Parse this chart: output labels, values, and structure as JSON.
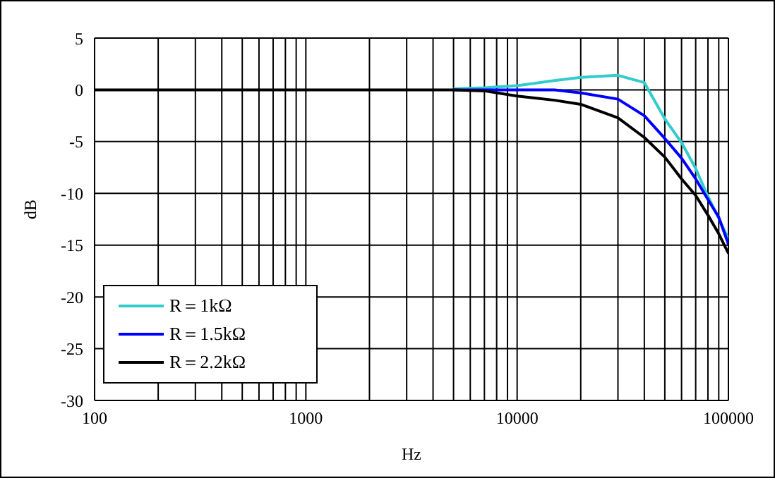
{
  "chart_data": {
    "type": "line",
    "xlabel": "Hz",
    "ylabel": "dB",
    "log": "x",
    "grid": true,
    "legend": "bottom left",
    "marker": "none",
    "line_style": "solid",
    "x": [
      100,
      1000,
      5000,
      7000,
      10000,
      15000,
      20000,
      30000,
      40000,
      50000,
      60000,
      70000,
      80000,
      90000,
      100000
    ],
    "series": [
      {
        "name": "R＝1kΩ",
        "color": "#33cccc",
        "values": [
          null,
          null,
          0.1,
          0.2,
          0.4,
          0.9,
          1.2,
          1.4,
          0.7,
          -2.8,
          -5.1,
          -7.6,
          -10.3,
          -12.4,
          -14.4
        ]
      },
      {
        "name": "R＝1.5kΩ",
        "color": "#0000ff",
        "values": [
          null,
          null,
          0,
          0,
          0,
          0,
          -0.3,
          -0.9,
          -2.5,
          -4.7,
          -6.6,
          -8.6,
          -10.6,
          -12.3,
          -14.9
        ]
      },
      {
        "name": "R＝2.2kΩ",
        "color": "#000000",
        "values": [
          0,
          0,
          0,
          -0.1,
          -0.6,
          -1.0,
          -1.4,
          -2.7,
          -4.6,
          -6.5,
          -8.6,
          -10.2,
          -12.1,
          -13.9,
          -15.8
        ]
      }
    ],
    "xlim": [
      100,
      100000
    ],
    "xticks": [
      100,
      {
        "value": 200,
        "label": null
      },
      {
        "value": 300,
        "label": null
      },
      {
        "value": 400,
        "label": null
      },
      {
        "value": 500,
        "label": null
      },
      {
        "value": 600,
        "label": null
      },
      {
        "value": 700,
        "label": null
      },
      {
        "value": 800,
        "label": null
      },
      {
        "value": 900,
        "label": null
      },
      1000,
      {
        "value": 2000,
        "label": null
      },
      {
        "value": 3000,
        "label": null
      },
      {
        "value": 4000,
        "label": null
      },
      {
        "value": 5000,
        "label": null
      },
      {
        "value": 6000,
        "label": null
      },
      {
        "value": 7000,
        "label": null
      },
      {
        "value": 8000,
        "label": null
      },
      {
        "value": 9000,
        "label": null
      },
      10000,
      {
        "value": 20000,
        "label": null
      },
      {
        "value": 30000,
        "label": null
      },
      {
        "value": 40000,
        "label": null
      },
      {
        "value": 50000,
        "label": null
      },
      {
        "value": 60000,
        "label": null
      },
      {
        "value": 70000,
        "label": null
      },
      {
        "value": 80000,
        "label": null
      },
      {
        "value": 90000,
        "label": null
      },
      100000
    ],
    "ylim": [
      -30,
      5
    ],
    "yticks": [
      -30,
      -25,
      -20,
      -15,
      -10,
      -5,
      0,
      5
    ]
  }
}
